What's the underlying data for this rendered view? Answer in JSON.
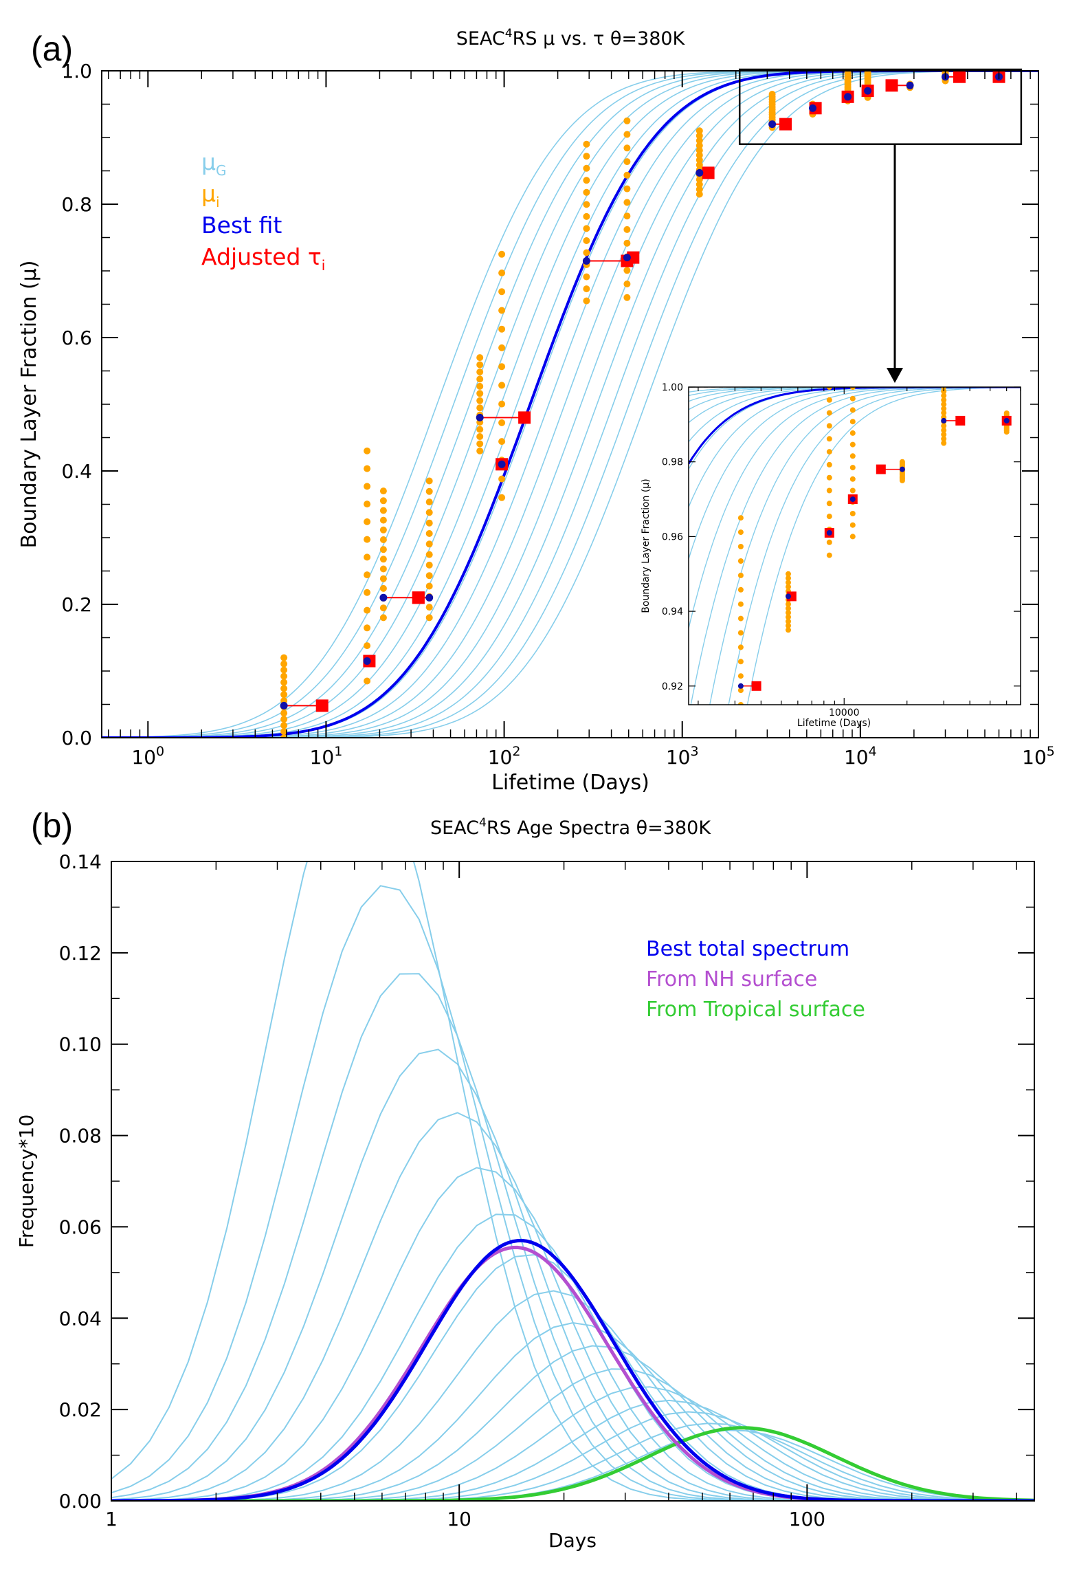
{
  "figure": {
    "panel_a_label": "(a)",
    "panel_b_label": "(b)"
  },
  "chart_data": [
    {
      "type": "line",
      "panel": "a",
      "title_prefix": "SEAC",
      "title_superscript": "4",
      "title_suffix": "RS  μ vs. τ   θ=380K",
      "xlabel": "Lifetime (Days)",
      "ylabel": "Boundary Layer Fraction (μ)",
      "xscale": "log",
      "xlim": [
        0.55,
        100000
      ],
      "ylim": [
        0,
        1.0
      ],
      "xticks": [
        "10^0",
        "10^1",
        "10^2",
        "10^3",
        "10^4",
        "10^5"
      ],
      "yticks": [
        "0.0",
        "0.2",
        "0.4",
        "0.6",
        "0.8",
        "1.0"
      ],
      "reference_line_y": 1.0,
      "legend": [
        {
          "label": "μ",
          "sub": "G",
          "color": "#87ceeb"
        },
        {
          "label": "μ",
          "sub": "i",
          "color": "#ffa500"
        },
        {
          "label": "Best fit",
          "sub": "",
          "color": "#0000ee"
        },
        {
          "label": "Adjusted τ",
          "sub": "i",
          "color": "#ff0000"
        }
      ],
      "gamma_family_medians": [
        42,
        52,
        64,
        78,
        96,
        118,
        145,
        178,
        219,
        270,
        332,
        409,
        503,
        619
      ],
      "best_fit_median": 140,
      "observations": [
        {
          "tau": 5.8,
          "mu_mean": 0.048,
          "mu_min": 0.0,
          "mu_max": 0.12,
          "adjusted_tau": 9.5
        },
        {
          "tau": 17.0,
          "mu_mean": 0.115,
          "mu_min": 0.085,
          "mu_max": 0.43,
          "adjusted_tau": 17.5
        },
        {
          "tau": 21.0,
          "mu_mean": 0.21,
          "mu_min": 0.18,
          "mu_max": 0.37,
          "adjusted_tau": 33.0
        },
        {
          "tau": 38.0,
          "mu_mean": 0.21,
          "mu_min": 0.18,
          "mu_max": 0.385,
          "adjusted_tau": 33.0
        },
        {
          "tau": 73.0,
          "mu_mean": 0.48,
          "mu_min": 0.43,
          "mu_max": 0.57,
          "adjusted_tau": 130.0
        },
        {
          "tau": 97.0,
          "mu_mean": 0.41,
          "mu_min": 0.36,
          "mu_max": 0.725,
          "adjusted_tau": 97.0
        },
        {
          "tau": 290.0,
          "mu_mean": 0.715,
          "mu_min": 0.655,
          "mu_max": 0.89,
          "adjusted_tau": 490.0
        },
        {
          "tau": 490.0,
          "mu_mean": 0.72,
          "mu_min": 0.66,
          "mu_max": 0.925,
          "adjusted_tau": 530.0
        },
        {
          "tau": 1250.0,
          "mu_mean": 0.847,
          "mu_min": 0.815,
          "mu_max": 0.91,
          "adjusted_tau": 1400.0
        },
        {
          "tau": 3200.0,
          "mu_mean": 0.92,
          "mu_min": 0.915,
          "mu_max": 0.965,
          "adjusted_tau": 3800.0
        },
        {
          "tau": 5400.0,
          "mu_mean": 0.944,
          "mu_min": 0.935,
          "mu_max": 0.95,
          "adjusted_tau": 5600.0
        },
        {
          "tau": 8500.0,
          "mu_mean": 0.961,
          "mu_min": 0.955,
          "mu_max": 1.0,
          "adjusted_tau": 8500.0
        },
        {
          "tau": 11000.0,
          "mu_mean": 0.97,
          "mu_min": 0.96,
          "mu_max": 1.0,
          "adjusted_tau": 11000.0
        },
        {
          "tau": 19000.0,
          "mu_mean": 0.978,
          "mu_min": 0.975,
          "mu_max": 0.98,
          "adjusted_tau": 15000.0
        },
        {
          "tau": 30000.0,
          "mu_mean": 0.991,
          "mu_min": 0.985,
          "mu_max": 1.0,
          "adjusted_tau": 36000.0
        },
        {
          "tau": 60000.0,
          "mu_mean": 0.991,
          "mu_min": 0.988,
          "mu_max": 0.993,
          "adjusted_tau": 60000.0
        }
      ],
      "inset": {
        "xlabel": "Lifetime (Days)",
        "ylabel": "Boundary Layer Fraction (μ)",
        "xscale": "log",
        "xlim": [
          1800,
          70000
        ],
        "ylim": [
          0.915,
          1.0
        ],
        "xticks": [
          "10000"
        ],
        "yticks": [
          "0.92",
          "0.94",
          "0.96",
          "0.98",
          "1.00"
        ],
        "zoom_box_xlim": [
          2100,
          80000
        ],
        "zoom_box_ylim": [
          0.89,
          1.0
        ]
      }
    },
    {
      "type": "line",
      "panel": "b",
      "title_prefix": "SEAC",
      "title_superscript": "4",
      "title_suffix": "RS Age Spectra   θ=380K",
      "xlabel": "Days",
      "ylabel": "Frequency*10",
      "xscale": "log",
      "xlim": [
        1,
        450
      ],
      "ylim": [
        0,
        0.14
      ],
      "xticks": [
        "1",
        "10",
        "100"
      ],
      "yticks": [
        "0.00",
        "0.02",
        "0.04",
        "0.06",
        "0.08",
        "0.10",
        "0.12",
        "0.14"
      ],
      "legend": [
        {
          "label": "Best total spectrum",
          "color": "#0000ee"
        },
        {
          "label": "From NH surface",
          "color": "#b44fd0"
        },
        {
          "label": "From Tropical surface",
          "color": "#33cc33"
        }
      ],
      "family_peaks": [
        {
          "mode": 5.2,
          "peak": 0.165
        },
        {
          "mode": 6.2,
          "peak": 0.135
        },
        {
          "mode": 7.2,
          "peak": 0.116
        },
        {
          "mode": 8.4,
          "peak": 0.099
        },
        {
          "mode": 9.8,
          "peak": 0.085
        },
        {
          "mode": 11.5,
          "peak": 0.073
        },
        {
          "mode": 13.5,
          "peak": 0.063
        },
        {
          "mode": 15.8,
          "peak": 0.054
        },
        {
          "mode": 18.5,
          "peak": 0.046
        },
        {
          "mode": 21.5,
          "peak": 0.039
        },
        {
          "mode": 25.0,
          "peak": 0.034
        },
        {
          "mode": 29.0,
          "peak": 0.029
        },
        {
          "mode": 34.0,
          "peak": 0.025
        },
        {
          "mode": 40.0,
          "peak": 0.022
        },
        {
          "mode": 46.0,
          "peak": 0.0195
        },
        {
          "mode": 53.0,
          "peak": 0.017
        },
        {
          "mode": 61.0,
          "peak": 0.0155
        }
      ],
      "best_total": {
        "mode": 15,
        "peak": 0.057
      },
      "nh_surface": {
        "mode": 14.5,
        "peak": 0.0555
      },
      "tropical_surface": {
        "mode": 65,
        "peak": 0.016
      }
    }
  ]
}
